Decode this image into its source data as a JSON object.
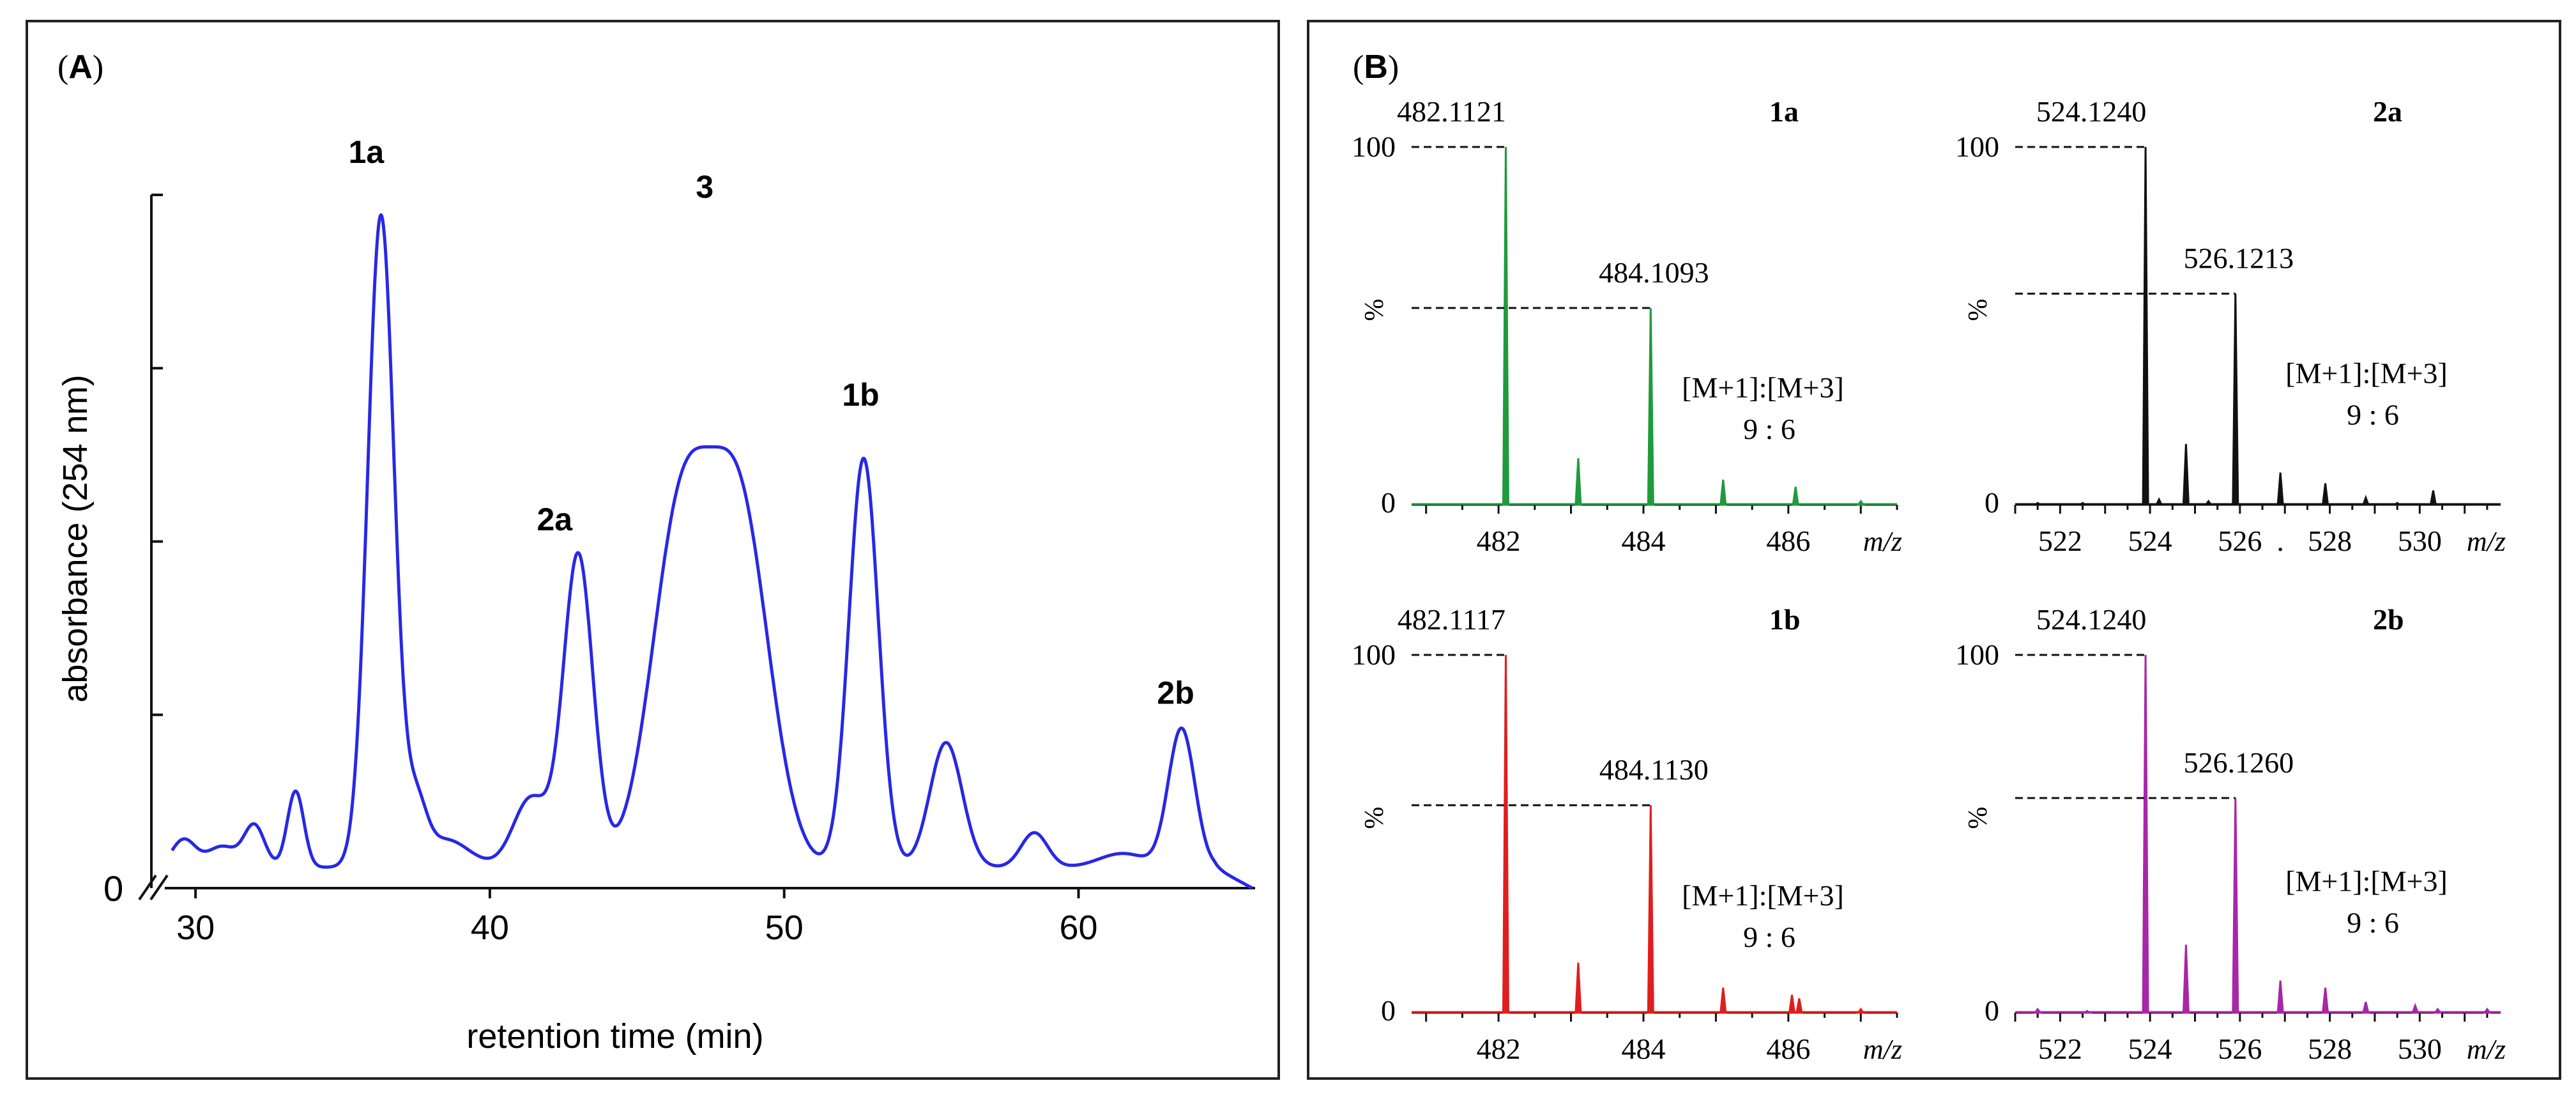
{
  "figure": {
    "colors": {
      "chrom": "#2828e6",
      "green": "#1f9a3c",
      "black": "#111111",
      "red": "#e01e1e",
      "purple": "#a826a8",
      "frame": "#222222"
    }
  },
  "panel_a": {
    "label_open": "(",
    "label_letter": "A",
    "label_close": ")",
    "ylabel": "absorbance (254 nm)",
    "xlabel": "retention time (min)",
    "y_zero_label": "0"
  },
  "panel_b": {
    "label_open": "(",
    "label_letter": "B",
    "label_close": ")"
  },
  "chart_data": [
    {
      "type": "line",
      "id": "chromatogram",
      "title": "(A)",
      "xlabel": "retention time (min)",
      "ylabel": "absorbance (254 nm)",
      "xlim": [
        28.5,
        66
      ],
      "ylim": [
        0,
        100
      ],
      "x_ticks": [
        30,
        40,
        50,
        60
      ],
      "y_ticks": [
        0,
        25,
        50,
        75,
        100
      ],
      "y_tick_labels": [
        "0"
      ],
      "axis_break": true,
      "baseline": 3,
      "peaks": [
        {
          "x": 29.6,
          "h": 4,
          "w": 0.4,
          "label": ""
        },
        {
          "x": 30.9,
          "h": 3,
          "w": 0.5,
          "label": ""
        },
        {
          "x": 32.0,
          "h": 6,
          "w": 0.35,
          "label": ""
        },
        {
          "x": 33.4,
          "h": 11,
          "w": 0.28,
          "label": ""
        },
        {
          "x": 36.3,
          "h": 94,
          "w": 0.45,
          "label": "1a"
        },
        {
          "x": 37.5,
          "h": 8,
          "w": 0.35,
          "label": ""
        },
        {
          "x": 38.5,
          "h": 4,
          "w": 0.8,
          "label": ""
        },
        {
          "x": 41.4,
          "h": 10,
          "w": 0.6,
          "label": ""
        },
        {
          "x": 43.0,
          "h": 45,
          "w": 0.5,
          "label": "2a"
        },
        {
          "x": 46.5,
          "h": 50,
          "w": 1.0,
          "label": ""
        },
        {
          "x": 48.5,
          "h": 50,
          "w": 1.0,
          "label": "3"
        },
        {
          "x": 52.7,
          "h": 59,
          "w": 0.5,
          "label": "1b"
        },
        {
          "x": 55.5,
          "h": 18,
          "w": 0.55,
          "label": ""
        },
        {
          "x": 58.5,
          "h": 5,
          "w": 0.45,
          "label": ""
        },
        {
          "x": 61.5,
          "h": 2,
          "w": 0.8,
          "label": ""
        },
        {
          "x": 63.5,
          "h": 20,
          "w": 0.45,
          "label": "2b"
        }
      ],
      "peak_labels": [
        {
          "text": "1a",
          "x": 35.8,
          "y": 100
        },
        {
          "text": "2a",
          "x": 42.2,
          "y": 47
        },
        {
          "text": "3",
          "x": 47.3,
          "y": 95
        },
        {
          "text": "1b",
          "x": 52.6,
          "y": 65
        },
        {
          "text": "2b",
          "x": 63.3,
          "y": 22
        }
      ]
    },
    {
      "type": "bar",
      "id": "ms-1a",
      "label": "1a",
      "color": "#1f9a3c",
      "xlabel": "m/z",
      "xlim": [
        480.8,
        487.5
      ],
      "x_ticks": [
        482,
        484,
        486
      ],
      "y_ticks": [
        0,
        100
      ],
      "ylabel": "%",
      "peaks": [
        [
          482.1,
          100
        ],
        [
          483.1,
          13
        ],
        [
          484.1,
          55
        ],
        [
          485.1,
          7
        ],
        [
          486.1,
          5
        ],
        [
          487.0,
          1
        ]
      ],
      "annotations": [
        {
          "text": "482.1121",
          "x": 482.1,
          "y": 100
        },
        {
          "text": "484.1093",
          "x": 484.1,
          "y": 55
        }
      ],
      "ratio_title": "[M+1]:[M+3]",
      "ratio_values": "9   :   6"
    },
    {
      "type": "bar",
      "id": "ms-2a",
      "label": "2a",
      "color": "#111111",
      "xlabel": "m/z",
      "xlim": [
        521.0,
        531.8
      ],
      "x_ticks": [
        522,
        524,
        526,
        528,
        530
      ],
      "extra_tick_label": ".",
      "y_ticks": [
        0,
        100
      ],
      "ylabel": "%",
      "peaks": [
        [
          521.5,
          0.5
        ],
        [
          522.5,
          0.5
        ],
        [
          523.9,
          100
        ],
        [
          524.2,
          1.5
        ],
        [
          524.8,
          17
        ],
        [
          525.3,
          1
        ],
        [
          525.9,
          59
        ],
        [
          526.9,
          9
        ],
        [
          527.9,
          6
        ],
        [
          528.8,
          2
        ],
        [
          529.5,
          0.5
        ],
        [
          530.3,
          4
        ]
      ],
      "annotations": [
        {
          "text": "524.1240",
          "x": 523.9,
          "y": 100
        },
        {
          "text": "526.1213",
          "x": 525.9,
          "y": 59
        }
      ],
      "ratio_title": "[M+1]:[M+3]",
      "ratio_values": "9   :   6"
    },
    {
      "type": "bar",
      "id": "ms-1b",
      "label": "1b",
      "color": "#e01e1e",
      "xlabel": "m/z",
      "xlim": [
        480.8,
        487.5
      ],
      "x_ticks": [
        482,
        484,
        486
      ],
      "y_ticks": [
        0,
        100
      ],
      "ylabel": "%",
      "peaks": [
        [
          482.1,
          100
        ],
        [
          483.1,
          14
        ],
        [
          484.1,
          58
        ],
        [
          485.1,
          7
        ],
        [
          486.05,
          5
        ],
        [
          486.15,
          4
        ],
        [
          487.0,
          1
        ]
      ],
      "annotations": [
        {
          "text": "482.1117",
          "x": 482.1,
          "y": 100
        },
        {
          "text": "484.1130",
          "x": 484.1,
          "y": 58
        }
      ],
      "ratio_title": "[M+1]:[M+3]",
      "ratio_values": "9   :   6"
    },
    {
      "type": "bar",
      "id": "ms-2b",
      "label": "2b",
      "color": "#a826a8",
      "xlabel": "m/z",
      "xlim": [
        521.0,
        531.8
      ],
      "x_ticks": [
        522,
        524,
        526,
        528,
        530
      ],
      "y_ticks": [
        0,
        100
      ],
      "ylabel": "%",
      "peaks": [
        [
          521.5,
          1
        ],
        [
          522.6,
          0.5
        ],
        [
          523.9,
          100
        ],
        [
          524.8,
          19
        ],
        [
          525.9,
          60
        ],
        [
          526.9,
          9
        ],
        [
          527.9,
          7
        ],
        [
          528.8,
          3
        ],
        [
          529.9,
          2
        ],
        [
          530.4,
          1
        ],
        [
          531.5,
          1
        ]
      ],
      "annotations": [
        {
          "text": "524.1240",
          "x": 523.9,
          "y": 100
        },
        {
          "text": "526.1260",
          "x": 525.9,
          "y": 60
        }
      ],
      "ratio_title": "[M+1]:[M+3]",
      "ratio_values": "9   :   6"
    }
  ]
}
